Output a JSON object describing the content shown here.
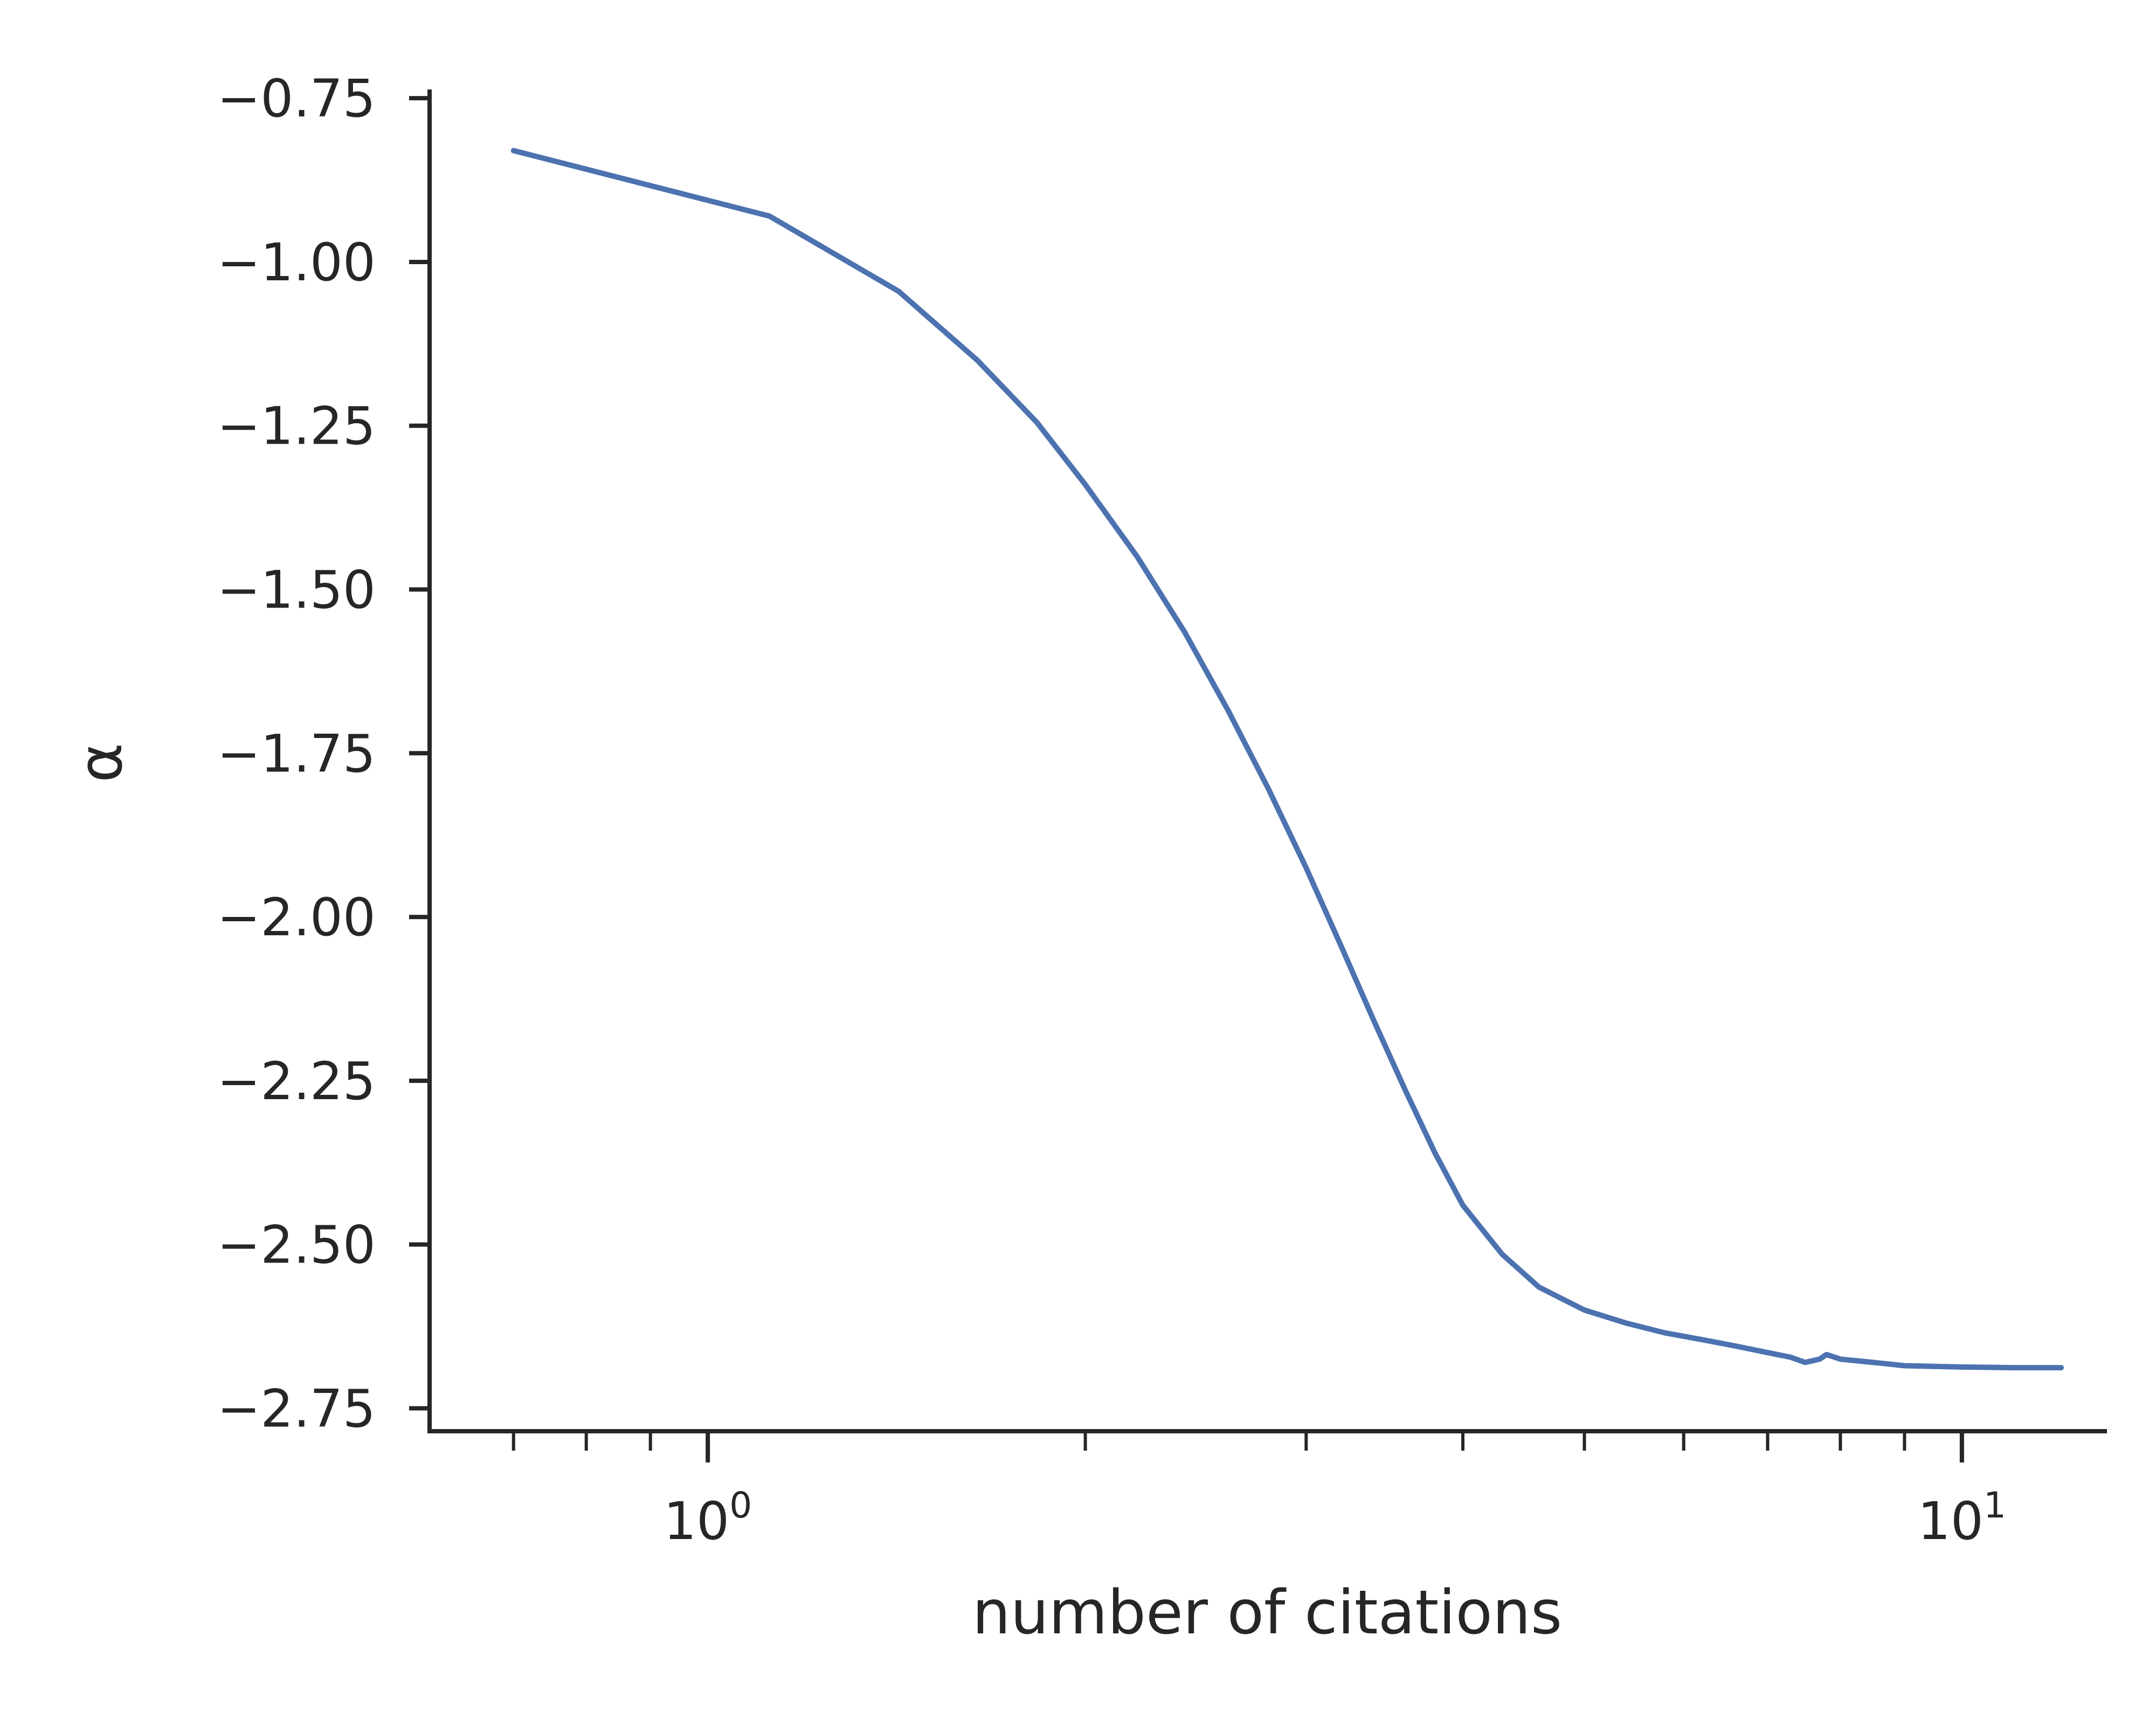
{
  "chart_data": {
    "type": "line",
    "title": "",
    "xlabel": "number of citations",
    "ylabel": "α",
    "xscale": "log",
    "xlim": [
      0.6,
      13.0
    ],
    "ylim": [
      -2.785,
      -0.74
    ],
    "yticks": [
      -0.75,
      -1.0,
      -1.25,
      -1.5,
      -1.75,
      -2.0,
      -2.25,
      -2.5,
      -2.75
    ],
    "ytick_labels": [
      "−0.75",
      "−1.00",
      "−1.25",
      "−1.50",
      "−1.75",
      "−2.00",
      "−2.25",
      "−2.50",
      "−2.75"
    ],
    "xticks_major": [
      {
        "value": 1,
        "base": "10",
        "exp": "0"
      },
      {
        "value": 10,
        "base": "10",
        "exp": "1"
      }
    ],
    "xticks_minor": [
      0.7,
      0.8,
      0.9,
      2,
      3,
      4,
      5,
      6,
      7,
      8,
      9
    ],
    "grid": false,
    "series": [
      {
        "name": "alpha",
        "color": "#4c72b0",
        "x": [
          0.7,
          1.12,
          1.42,
          1.64,
          1.83,
          2.0,
          2.2,
          2.4,
          2.6,
          2.8,
          3.0,
          3.2,
          3.4,
          3.6,
          3.8,
          4.0,
          4.3,
          4.6,
          5.0,
          5.4,
          5.8,
          6.2,
          6.6,
          7.0,
          7.3,
          7.5,
          7.7,
          7.8,
          8.0,
          8.3,
          8.7,
          9.0,
          9.5,
          10.0,
          11.0,
          12.0
        ],
        "y": [
          -0.83,
          -0.93,
          -1.045,
          -1.15,
          -1.245,
          -1.34,
          -1.45,
          -1.565,
          -1.685,
          -1.805,
          -1.925,
          -2.045,
          -2.16,
          -2.265,
          -2.36,
          -2.44,
          -2.515,
          -2.565,
          -2.6,
          -2.62,
          -2.635,
          -2.645,
          -2.655,
          -2.665,
          -2.672,
          -2.68,
          -2.675,
          -2.668,
          -2.675,
          -2.678,
          -2.682,
          -2.685,
          -2.686,
          -2.687,
          -2.688,
          -2.688
        ]
      }
    ]
  }
}
